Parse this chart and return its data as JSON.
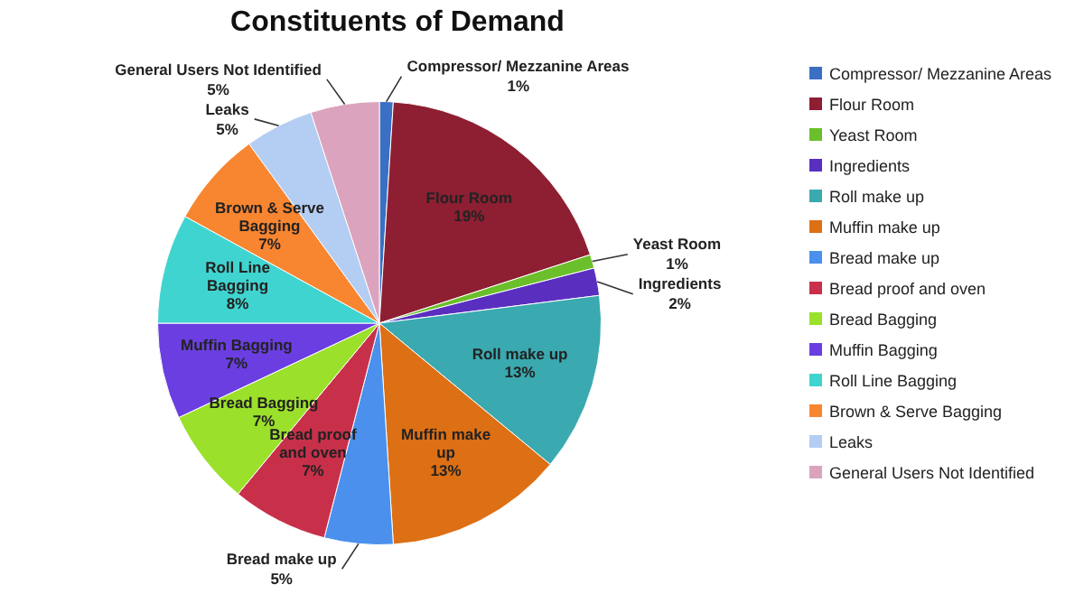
{
  "chart_data": {
    "type": "pie",
    "title": "Constituents of Demand",
    "categories": [
      "Compressor/ Mezzanine Areas",
      "Flour Room",
      "Yeast Room",
      "Ingredients",
      "Roll make up",
      "Muffin make up",
      "Bread make up",
      "Bread proof and oven",
      "Bread Bagging",
      "Muffin Bagging",
      "Roll Line Bagging",
      "Brown & Serve Bagging",
      "Leaks",
      "General Users Not Identified"
    ],
    "values": [
      1,
      19,
      1,
      2,
      13,
      13,
      5,
      7,
      7,
      7,
      8,
      7,
      5,
      5
    ],
    "value_labels": [
      "1%",
      "19%",
      "1%",
      "2%",
      "13%",
      "13%",
      "5%",
      "7%",
      "7%",
      "7%",
      "8%",
      "7%",
      "5%",
      "5%"
    ],
    "colors": [
      "#3a6fc4",
      "#8e1f32",
      "#6bbf2a",
      "#5a2fc0",
      "#3aa9b0",
      "#dd6f14",
      "#4a90ec",
      "#c8304a",
      "#9be02a",
      "#6a3ee0",
      "#40d4d0",
      "#f88530",
      "#b4cdf2",
      "#dba3bd"
    ],
    "legend": "right"
  }
}
